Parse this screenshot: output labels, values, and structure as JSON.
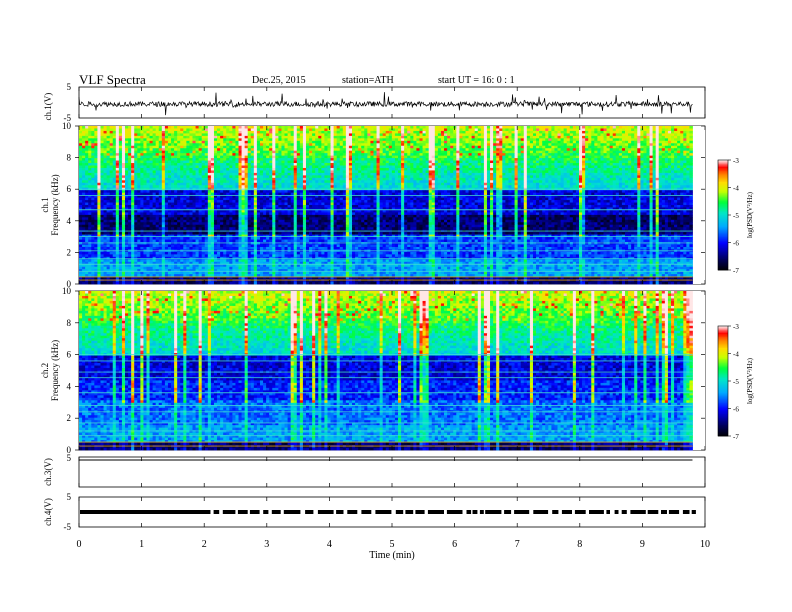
{
  "header": {
    "title": "VLF  Spectra",
    "date": "Dec.25, 2015",
    "station": "station=ATH",
    "start": "start  UT  =    16: 0  : 1"
  },
  "colorbar": {
    "label": "log(PSD(V²/Hz)",
    "ticks": [
      "-3",
      "-4",
      "-5",
      "-6",
      "-7"
    ],
    "colors": [
      "#ffffff",
      "#ff0000",
      "#ffaa00",
      "#ffff00",
      "#00ff00",
      "#00e0e0",
      "#00a0ff",
      "#0000ff",
      "#000080",
      "#000000"
    ]
  },
  "chart_data": [
    {
      "type": "line",
      "panel": "ch1-waveform",
      "ylabel": "ch.1(V)",
      "ylim": [
        -5,
        5
      ],
      "yticks": [
        "5",
        "-5"
      ],
      "xlim": [
        0,
        10
      ],
      "baseline": -0.5,
      "note_range_visible": [
        0,
        9.8
      ]
    },
    {
      "type": "heatmap",
      "panel": "ch1-spectrogram",
      "ylabel_channel": "ch.1",
      "ylabel": "Frequency  (kHz)",
      "ylim": [
        0,
        10
      ],
      "yticks": [
        "0",
        "2",
        "4",
        "6",
        "8",
        "10"
      ],
      "xlim": [
        0,
        10
      ],
      "colorscale_range": [
        -7,
        -3
      ]
    },
    {
      "type": "heatmap",
      "panel": "ch2-spectrogram",
      "ylabel_channel": "ch.2",
      "ylabel": "Frequency  (kHz)",
      "ylim": [
        0,
        10
      ],
      "yticks": [
        "0",
        "2",
        "4",
        "6",
        "8",
        "10"
      ],
      "xlim": [
        0,
        10
      ],
      "colorscale_range": [
        -7,
        -3
      ]
    },
    {
      "type": "line",
      "panel": "ch3-waveform",
      "ylabel": "ch.3(V)",
      "ylim": [
        -5,
        5
      ],
      "yticks": [
        "5"
      ],
      "xlim": [
        0,
        10
      ],
      "baseline": 5
    },
    {
      "type": "line",
      "panel": "ch4-waveform",
      "ylabel": "ch.4(V)",
      "ylim": [
        -5,
        5
      ],
      "yticks": [
        "5",
        "-5"
      ],
      "xlim": [
        0,
        10
      ],
      "baseline": 0
    }
  ],
  "xaxis": {
    "label": "Time  (min)",
    "ticks": [
      "0",
      "1",
      "2",
      "3",
      "4",
      "5",
      "6",
      "7",
      "8",
      "9",
      "10"
    ]
  }
}
